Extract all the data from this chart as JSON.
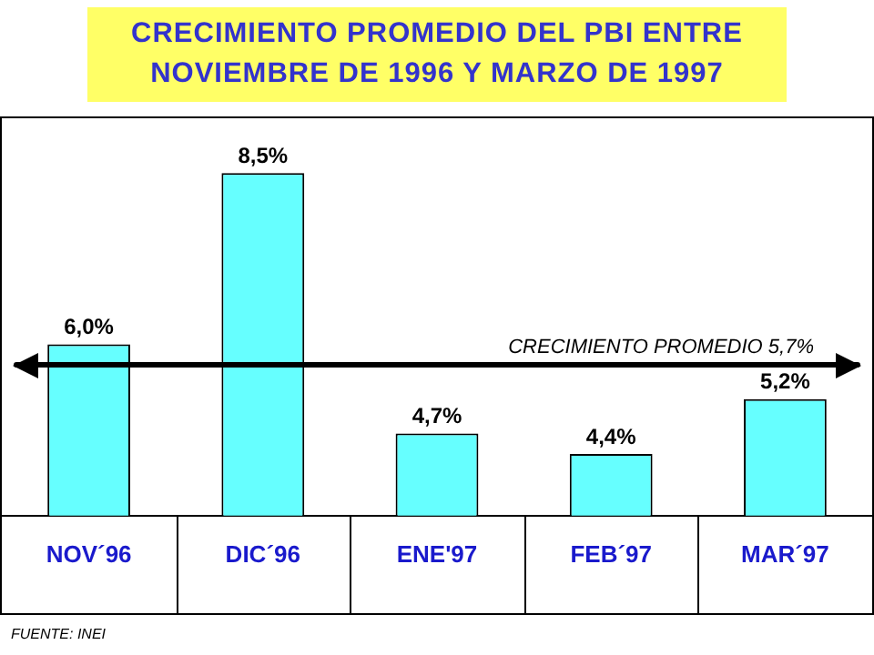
{
  "chart_data": {
    "type": "bar",
    "title": "CRECIMIENTO PROMEDIO DEL PBI ENTRE NOVIEMBRE DE 1996 Y MARZO DE 1997",
    "categories": [
      "NOV´96",
      "DIC´96",
      "ENE'97",
      "FEB´97",
      "MAR´97"
    ],
    "values": [
      6.0,
      8.5,
      4.7,
      4.4,
      5.2
    ],
    "value_labels": [
      "6,0%",
      "8,5%",
      "4,7%",
      "4,4%",
      "5,2%"
    ],
    "color": "#66ffff",
    "ylim": [
      3.5,
      9.3
    ],
    "tick_labels": "x",
    "grid": false,
    "legend": false,
    "ref_lines": [
      {
        "axis": "y",
        "value": 5.7,
        "label": "CRECIMIENTO PROMEDIO 5,7%",
        "color": "#000000"
      }
    ],
    "annotations": [
      "FUENTE: INEI"
    ]
  }
}
